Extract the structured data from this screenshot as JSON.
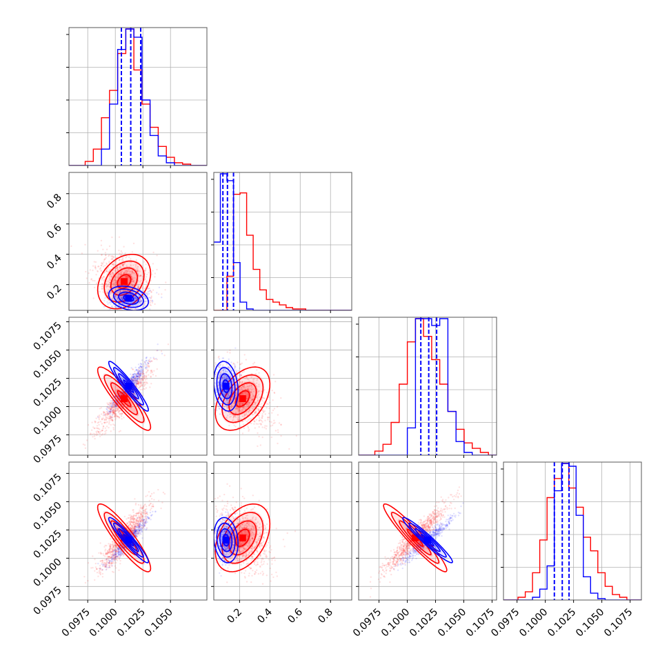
{
  "colors": {
    "red": "#ff0000",
    "blue": "#0000ff",
    "grid": "#b0b0b0"
  },
  "chart_data": {
    "type": "corner",
    "grid": true,
    "param_ticks": [
      [
        "0.0975",
        "0.1000",
        "0.1025",
        "0.1050"
      ],
      [
        "0.2",
        "0.4",
        "0.6",
        "0.8"
      ],
      [
        "0.0975",
        "0.1000",
        "0.1025",
        "0.1050",
        "0.1075"
      ],
      [
        "0.0975",
        "0.1000",
        "0.1025",
        "0.1050",
        "0.1075"
      ]
    ],
    "ranges": [
      [
        0.0958,
        0.1083
      ],
      [
        0.03,
        0.94
      ],
      [
        0.0957,
        0.1079
      ],
      [
        0.0963,
        0.1085
      ]
    ],
    "series": [
      {
        "color": "red",
        "means": [
          0.1008,
          0.22,
          0.1007,
          0.1018
        ],
        "sigmas": [
          0.0012,
          0.09,
          0.0014,
          0.0015
        ],
        "correlations": {
          "1-0": -0.3,
          "2-0": 0.9,
          "2-1": -0.45,
          "3-0": 0.9,
          "3-1": -0.4,
          "3-2": 0.95
        },
        "histograms": [
          [
            0.0,
            0.0,
            0.03,
            0.12,
            0.35,
            0.55,
            0.82,
            1.0,
            0.7,
            0.45,
            0.28,
            0.14,
            0.06,
            0.02,
            0.01,
            0.0,
            0.0
          ],
          [
            0.0,
            0.0,
            0.25,
            0.85,
            0.86,
            0.55,
            0.3,
            0.15,
            0.08,
            0.06,
            0.04,
            0.02,
            0.01,
            0.01,
            0.0,
            0.0,
            0.0,
            0.0,
            0.0,
            0.0,
            0.0
          ],
          [
            0.0,
            0.0,
            0.03,
            0.08,
            0.24,
            0.52,
            0.83,
            1.0,
            0.87,
            0.7,
            0.52,
            0.32,
            0.19,
            0.09,
            0.05,
            0.02,
            0.0
          ],
          [
            0.0,
            0.0,
            0.02,
            0.06,
            0.2,
            0.44,
            0.75,
            0.89,
            1.0,
            0.82,
            0.68,
            0.46,
            0.36,
            0.2,
            0.1,
            0.04,
            0.02,
            0.0,
            0.0
          ]
        ]
      },
      {
        "color": "blue",
        "means": [
          0.1012,
          0.11,
          0.1018,
          0.1016
        ],
        "sigmas": [
          0.0009,
          0.04,
          0.0011,
          0.001
        ],
        "correlations": {
          "1-0": 0.3,
          "2-0": 0.95,
          "2-1": 0.2,
          "3-0": 0.95,
          "3-1": 0.15,
          "3-2": 0.96
        },
        "histograms": [
          [
            0.0,
            0.0,
            0.0,
            0.0,
            0.12,
            0.45,
            0.85,
            1.0,
            0.94,
            0.48,
            0.22,
            0.07,
            0.02,
            0.0,
            0.0,
            0.0,
            0.0
          ],
          [
            0.5,
            1.0,
            0.95,
            0.35,
            0.06,
            0.01,
            0.0,
            0.0,
            0.0,
            0.0,
            0.0,
            0.0,
            0.0,
            0.0,
            0.0,
            0.0,
            0.0,
            0.0,
            0.0,
            0.0,
            0.0
          ],
          [
            0.0,
            0.0,
            0.0,
            0.0,
            0.0,
            0.0,
            0.2,
            1.0,
            1.0,
            0.95,
            1.0,
            0.32,
            0.1,
            0.02,
            0.0,
            0.0,
            0.0
          ],
          [
            0.0,
            0.0,
            0.0,
            0.0,
            0.02,
            0.08,
            0.25,
            0.8,
            1.0,
            0.98,
            0.62,
            0.17,
            0.05,
            0.01,
            0.0,
            0.0,
            0.0,
            0.0,
            0.0
          ]
        ]
      }
    ],
    "quantile_lines": [
      [
        0.10055,
        0.1014,
        0.1023
      ],
      [
        0.09,
        0.12,
        0.16
      ],
      [
        0.1012,
        0.1019,
        0.1026
      ],
      [
        0.1008,
        0.1015,
        0.1021
      ]
    ]
  }
}
